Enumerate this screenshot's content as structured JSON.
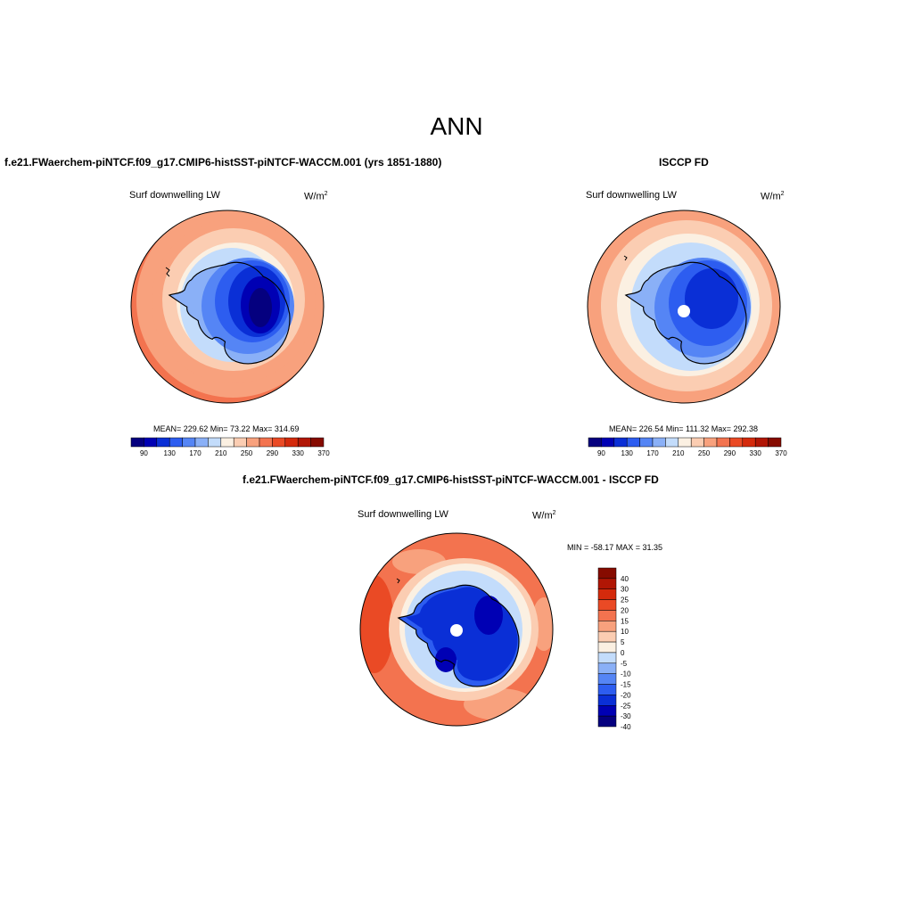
{
  "title": "ANN",
  "panels": [
    {
      "id": "model",
      "title": "f.e21.FWaerchem-piNTCF.f09_g17.CMIP6-histSST-piNTCF-WACCM.001 (yrs 1851-1880)",
      "variable": "Surf downwelling LW",
      "units_base": "W/m",
      "units_exp": "2",
      "stats": "MEAN= 229.62  Min=  73.22  Max= 314.69",
      "colorbar_ticks": [
        "90",
        "130",
        "170",
        "210",
        "250",
        "290",
        "330",
        "370"
      ]
    },
    {
      "id": "obs",
      "title": "ISCCP FD",
      "variable": "Surf downwelling LW",
      "units_base": "W/m",
      "units_exp": "2",
      "stats": "MEAN= 226.54  Min= 111.32  Max= 292.38",
      "colorbar_ticks": [
        "90",
        "130",
        "170",
        "210",
        "250",
        "290",
        "330",
        "370"
      ]
    },
    {
      "id": "diff",
      "title": "f.e21.FWaerchem-piNTCF.f09_g17.CMIP6-histSST-piNTCF-WACCM.001 - ISCCP FD",
      "variable": "Surf downwelling LW",
      "units_base": "W/m",
      "units_exp": "2",
      "stats": "MIN = -58.17 MAX =  31.35",
      "colorbar_ticks": [
        "40",
        "30",
        "25",
        "20",
        "15",
        "10",
        "5",
        "0",
        "-5",
        "-10",
        "-15",
        "-20",
        "-25",
        "-30",
        "-40"
      ]
    }
  ],
  "colors": {
    "abs_palette": [
      "#05007f",
      "#0000b4",
      "#0a2fd6",
      "#2d5df0",
      "#5585f5",
      "#8ab0f7",
      "#c3dcfb",
      "#fbf0e2",
      "#fbcdb2",
      "#f8a17d",
      "#f3734f",
      "#ea4a25",
      "#d42a0c",
      "#b11605",
      "#860b00"
    ],
    "diff_palette": [
      "#860b00",
      "#b11605",
      "#d42a0c",
      "#ea4a25",
      "#f3734f",
      "#f8a17d",
      "#fbcdb2",
      "#fbf0e2",
      "#c3dcfb",
      "#8ab0f7",
      "#5585f5",
      "#2d5df0",
      "#0a2fd6",
      "#0000b4",
      "#05007f"
    ]
  }
}
